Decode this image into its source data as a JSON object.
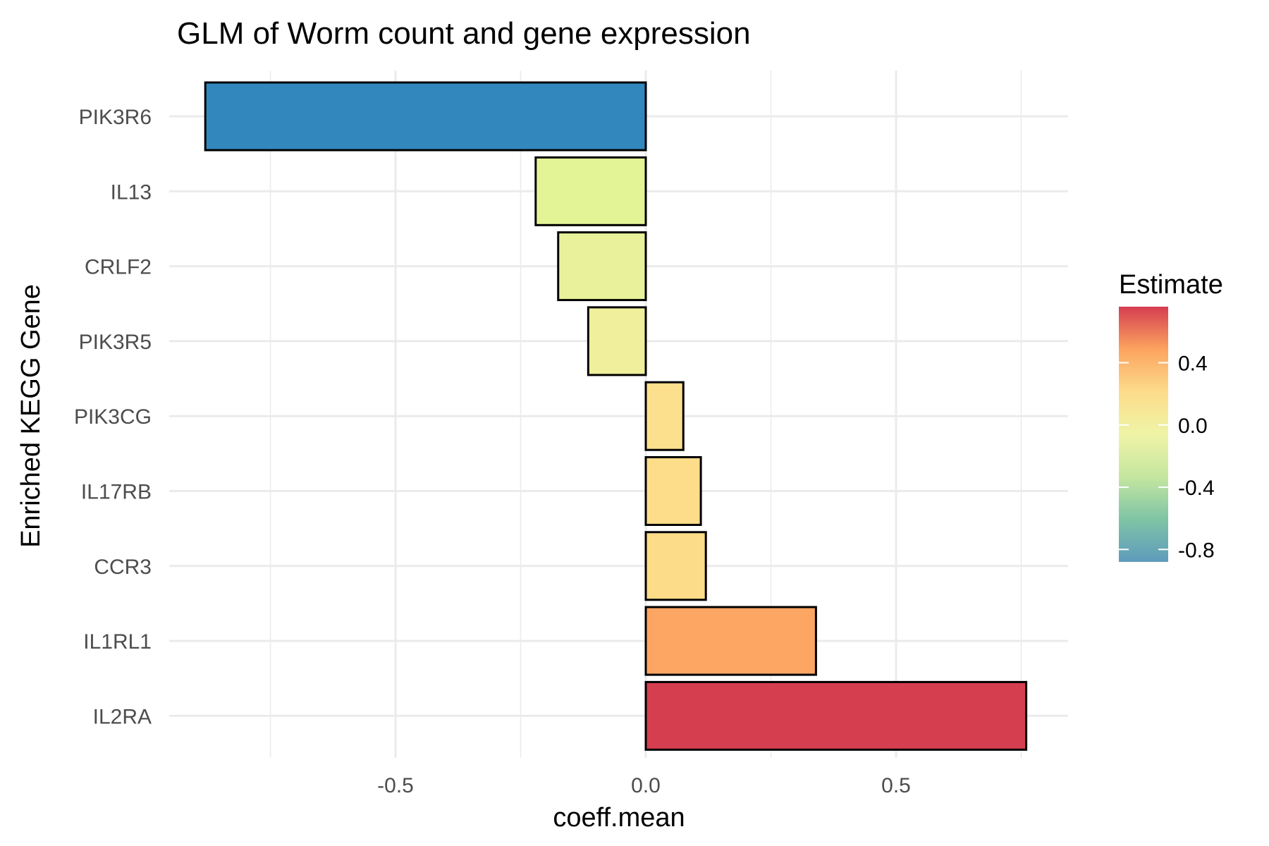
{
  "chart_data": {
    "type": "bar",
    "orientation": "horizontal",
    "title": "GLM of Worm count and gene expression",
    "xlabel": "coeff.mean",
    "ylabel": "Enriched KEGG Gene",
    "categories": [
      "PIK3R6",
      "IL13",
      "CRLF2",
      "PIK3R5",
      "PIK3CG",
      "IL17RB",
      "CCR3",
      "IL1RL1",
      "IL2RA"
    ],
    "values": [
      -0.88,
      -0.22,
      -0.175,
      -0.115,
      0.075,
      0.11,
      0.12,
      0.34,
      0.76
    ],
    "xlim": [
      -0.95,
      0.84
    ],
    "xticks": [
      -0.5,
      0.0,
      0.5
    ],
    "xtick_labels": [
      "-0.5",
      "0.0",
      "0.5"
    ],
    "grid": true,
    "legend": {
      "title": "Estimate",
      "type": "colorbar",
      "placement": "right",
      "range": [
        -0.88,
        0.76
      ],
      "ticks": [
        0.4,
        0.0,
        -0.4,
        -0.8
      ],
      "tick_labels": [
        "0.4",
        "0.0",
        "-0.4",
        "-0.8"
      ]
    },
    "colors": {
      "PIK3R6": "#3288bd",
      "IL13": "#e3f497",
      "CRLF2": "#e9f29a",
      "PIK3R5": "#f0ef9c",
      "PIK3CG": "#fde08d",
      "IL17RB": "#fddd8a",
      "CCR3": "#fddc89",
      "IL1RL1": "#fda663",
      "IL2RA": "#d53e4f"
    },
    "colorscale": [
      "#5e9bbd",
      "#7fc4a5",
      "#c5e6a0",
      "#eff4a6",
      "#fcdc8a",
      "#fca35f",
      "#d53e4f"
    ]
  }
}
